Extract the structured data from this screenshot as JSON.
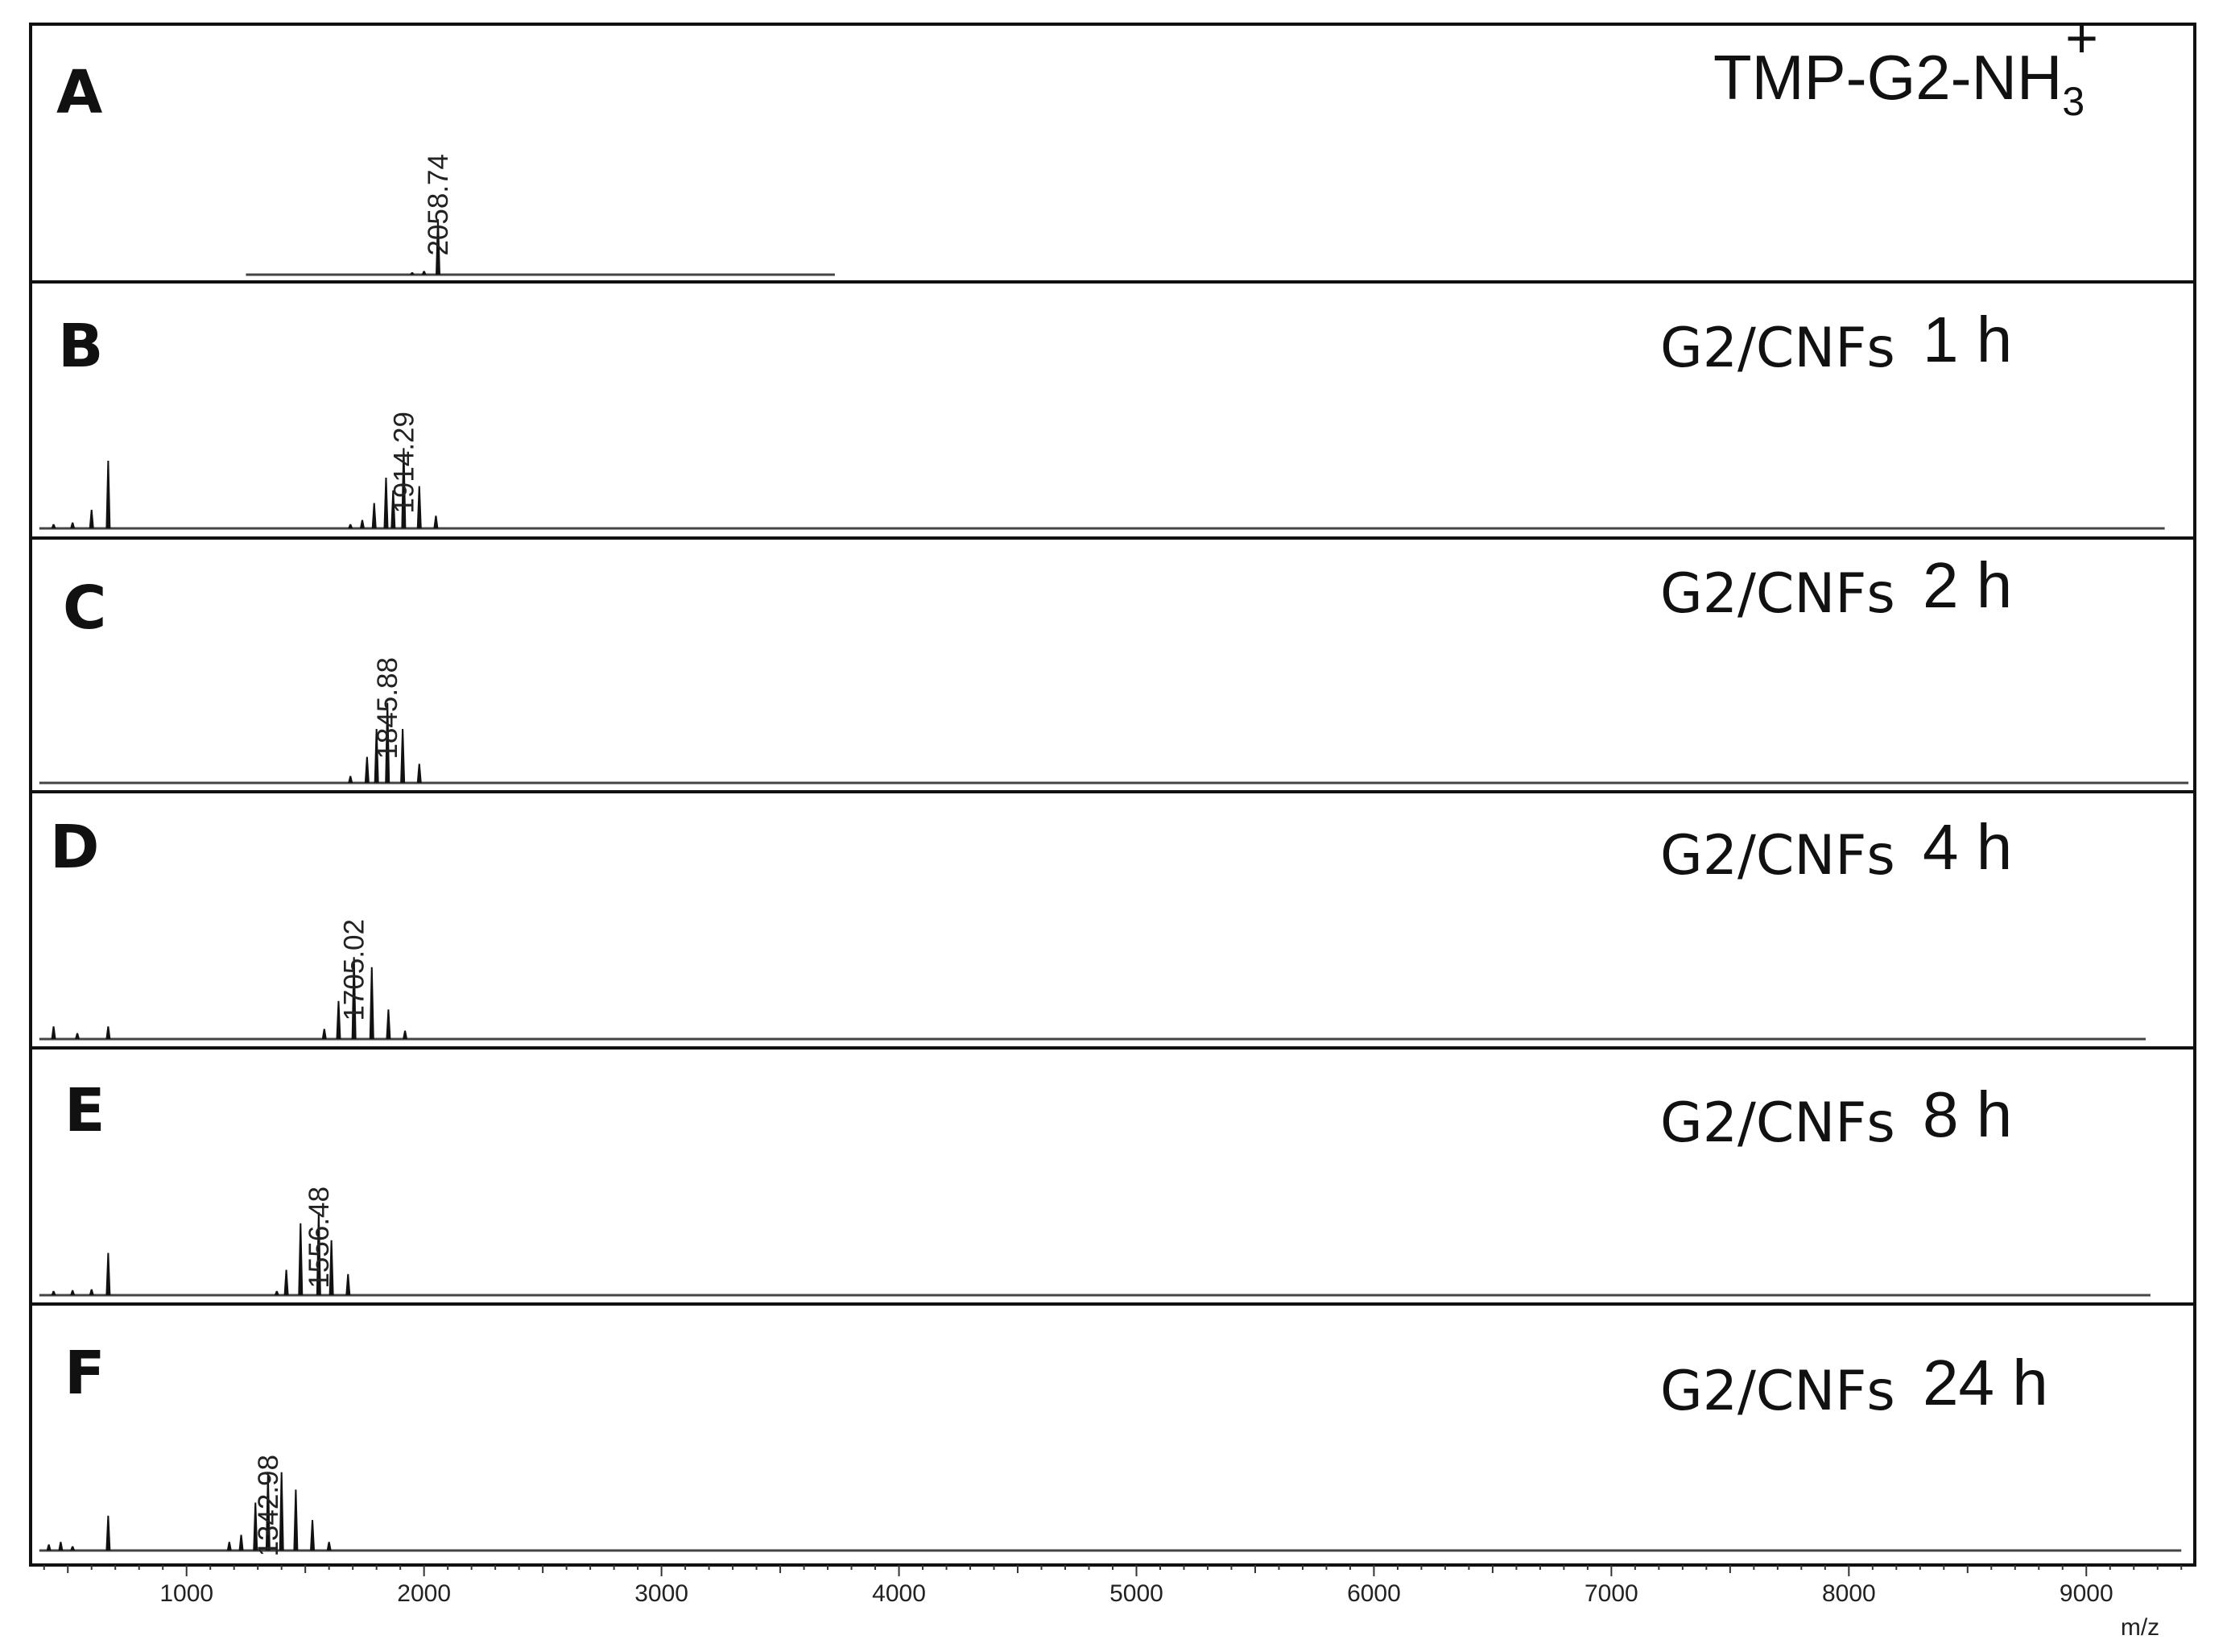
{
  "chart_data": {
    "type": "line",
    "xlabel": "m/z",
    "xlim": [
      350,
      9450
    ],
    "x_ticks": [
      "1000",
      "2000",
      "3000",
      "4000",
      "5000",
      "6000",
      "7000",
      "8000",
      "9000"
    ],
    "panels": [
      {
        "letter": "A",
        "title_main": "TMP-G2-NH",
        "title_sub": "3",
        "title_sup": "+",
        "peak_label": "2058.74",
        "peak_mz": 2058.74,
        "baseline_range": [
          1250,
          3730
        ],
        "peaks": [
          [
            1950,
            0.04
          ],
          [
            2000,
            0.06
          ],
          [
            2058.74,
            0.9
          ]
        ]
      },
      {
        "letter": "B",
        "sample": "G2/CNFs",
        "time": "1 h",
        "peak_label": "1914.29",
        "peak_mz": 1914.29,
        "baseline_range": [
          380,
          9330
        ],
        "peaks": [
          [
            440,
            0.05
          ],
          [
            520,
            0.07
          ],
          [
            600,
            0.22
          ],
          [
            670,
            0.8
          ],
          [
            1690,
            0.05
          ],
          [
            1740,
            0.1
          ],
          [
            1790,
            0.3
          ],
          [
            1840,
            0.6
          ],
          [
            1870,
            0.45
          ],
          [
            1914.29,
            0.95
          ],
          [
            1980,
            0.5
          ],
          [
            2050,
            0.15
          ]
        ]
      },
      {
        "letter": "C",
        "sample": "G2/CNFs",
        "time": "2 h",
        "peak_label": "1845.88",
        "peak_mz": 1845.88,
        "baseline_range": [
          380,
          9430
        ],
        "peaks": [
          [
            1690,
            0.08
          ],
          [
            1760,
            0.3
          ],
          [
            1800,
            0.62
          ],
          [
            1845.88,
            0.92
          ],
          [
            1910,
            0.62
          ],
          [
            1980,
            0.22
          ]
        ]
      },
      {
        "letter": "D",
        "sample": "G2/CNFs",
        "time": "4 h",
        "peak_label": "1705.02",
        "peak_mz": 1705.02,
        "baseline_range": [
          380,
          9250
        ],
        "peaks": [
          [
            440,
            0.15
          ],
          [
            540,
            0.07
          ],
          [
            670,
            0.15
          ],
          [
            1580,
            0.12
          ],
          [
            1640,
            0.45
          ],
          [
            1705.02,
            0.97
          ],
          [
            1780,
            0.85
          ],
          [
            1850,
            0.35
          ],
          [
            1920,
            0.1
          ]
        ]
      },
      {
        "letter": "E",
        "sample": "G2/CNFs",
        "time": "8 h",
        "peak_label": "1556.48",
        "peak_mz": 1556.48,
        "baseline_range": [
          380,
          9270
        ],
        "peaks": [
          [
            440,
            0.05
          ],
          [
            520,
            0.06
          ],
          [
            600,
            0.07
          ],
          [
            670,
            0.5
          ],
          [
            1380,
            0.05
          ],
          [
            1420,
            0.3
          ],
          [
            1480,
            0.85
          ],
          [
            1556.48,
            0.98
          ],
          [
            1610,
            0.65
          ],
          [
            1680,
            0.25
          ]
        ]
      },
      {
        "letter": "F",
        "sample": "G2/CNFs",
        "time": "24 h",
        "peak_label": "1342.98",
        "peak_mz": 1342.98,
        "baseline_range": [
          380,
          9400
        ],
        "peaks": [
          [
            420,
            0.07
          ],
          [
            470,
            0.1
          ],
          [
            520,
            0.05
          ],
          [
            670,
            0.4
          ],
          [
            1180,
            0.1
          ],
          [
            1230,
            0.18
          ],
          [
            1290,
            0.55
          ],
          [
            1342.98,
            0.88
          ],
          [
            1400,
            0.9
          ],
          [
            1460,
            0.7
          ],
          [
            1530,
            0.35
          ],
          [
            1600,
            0.1
          ]
        ]
      }
    ]
  }
}
